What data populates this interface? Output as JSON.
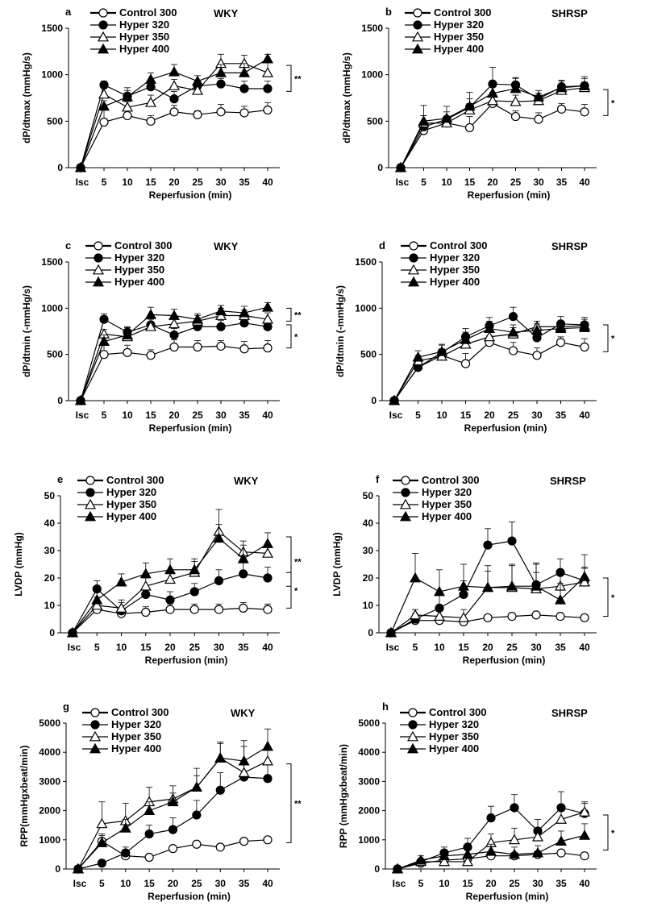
{
  "figure": {
    "x_categories": [
      "Isc",
      "5",
      "10",
      "15",
      "20",
      "25",
      "30",
      "35",
      "40"
    ],
    "xlabel": "Reperfusion   (min)",
    "legend": [
      {
        "name": "Control 300",
        "marker": "circle-open",
        "line": "bold"
      },
      {
        "name": "Hyper 320",
        "marker": "circle-filled",
        "line": "thin"
      },
      {
        "name": "Hyper 350",
        "marker": "triangle-open",
        "line": "thin"
      },
      {
        "name": "Hyper 400",
        "marker": "triangle-filled",
        "line": "thin"
      }
    ],
    "colors": {
      "ink": "#000000",
      "background": "#ffffff"
    }
  },
  "chart_data": [
    {
      "type": "line",
      "panel": "a",
      "strain": "WKY",
      "title": "",
      "ylabel": "dP/dtmax (mmHg/s)",
      "ylim": [
        0,
        1500
      ],
      "yticks": [
        0,
        500,
        1000,
        1500
      ],
      "categories": [
        "Isc",
        "5",
        "10",
        "15",
        "20",
        "25",
        "30",
        "35",
        "40"
      ],
      "series": [
        {
          "name": "Control 300",
          "values": [
            0,
            490,
            560,
            500,
            600,
            570,
            600,
            590,
            620
          ],
          "error": [
            0,
            140,
            80,
            60,
            70,
            40,
            80,
            70,
            80
          ]
        },
        {
          "name": "Hyper 320",
          "values": [
            0,
            890,
            770,
            870,
            740,
            880,
            900,
            850,
            850
          ],
          "error": [
            0,
            40,
            60,
            70,
            80,
            60,
            60,
            80,
            80
          ]
        },
        {
          "name": "Hyper 350",
          "values": [
            0,
            790,
            650,
            700,
            880,
            830,
            1120,
            1120,
            1020
          ],
          "error": [
            0,
            60,
            60,
            80,
            70,
            90,
            100,
            90,
            110
          ]
        },
        {
          "name": "Hyper 400",
          "values": [
            0,
            660,
            760,
            950,
            1030,
            930,
            1020,
            1020,
            1170
          ],
          "error": [
            0,
            60,
            100,
            70,
            80,
            60,
            90,
            100,
            50
          ]
        }
      ],
      "significance": [
        {
          "label": "**",
          "from": 1100,
          "to": 820
        }
      ]
    },
    {
      "type": "line",
      "panel": "b",
      "strain": "SHRSP",
      "title": "",
      "ylabel": "dP/dtmax (mmHg/s)",
      "ylim": [
        0,
        1500
      ],
      "yticks": [
        0,
        500,
        1000,
        1500
      ],
      "categories": [
        "Isc",
        "5",
        "10",
        "15",
        "20",
        "25",
        "30",
        "35",
        "40"
      ],
      "series": [
        {
          "name": "Control 300",
          "values": [
            0,
            400,
            480,
            430,
            690,
            550,
            520,
            630,
            600
          ],
          "error": [
            0,
            100,
            70,
            120,
            80,
            60,
            70,
            60,
            80
          ]
        },
        {
          "name": "Hyper 320",
          "values": [
            0,
            440,
            520,
            650,
            900,
            890,
            740,
            870,
            880
          ],
          "error": [
            0,
            120,
            80,
            90,
            180,
            80,
            60,
            60,
            80
          ]
        },
        {
          "name": "Hyper 350",
          "values": [
            0,
            480,
            480,
            620,
            720,
            710,
            720,
            830,
            860
          ],
          "error": [
            0,
            80,
            60,
            70,
            90,
            70,
            60,
            70,
            60
          ]
        },
        {
          "name": "Hyper 400",
          "values": [
            0,
            500,
            530,
            660,
            800,
            850,
            760,
            860,
            880
          ],
          "error": [
            0,
            170,
            130,
            150,
            100,
            110,
            70,
            80,
            100
          ]
        }
      ],
      "significance": [
        {
          "label": "*",
          "from": 840,
          "to": 560
        }
      ]
    },
    {
      "type": "line",
      "panel": "c",
      "strain": "WKY",
      "title": "",
      "ylabel": "dP/dtmin (-mmHg/s)",
      "ylim": [
        0,
        1500
      ],
      "yticks": [
        0,
        500,
        1000,
        1500
      ],
      "categories": [
        "Isc",
        "5",
        "10",
        "15",
        "20",
        "25",
        "30",
        "35",
        "40"
      ],
      "series": [
        {
          "name": "Control 300",
          "values": [
            0,
            500,
            520,
            490,
            580,
            580,
            590,
            560,
            570
          ],
          "error": [
            0,
            140,
            80,
            60,
            80,
            70,
            60,
            80,
            80
          ]
        },
        {
          "name": "Hyper 320",
          "values": [
            0,
            880,
            740,
            820,
            710,
            800,
            800,
            840,
            800
          ],
          "error": [
            0,
            60,
            60,
            80,
            70,
            70,
            70,
            60,
            70
          ]
        },
        {
          "name": "Hyper 350",
          "values": [
            0,
            720,
            690,
            800,
            830,
            860,
            920,
            920,
            880
          ],
          "error": [
            0,
            50,
            60,
            80,
            70,
            60,
            80,
            60,
            70
          ]
        },
        {
          "name": "Hyper 400",
          "values": [
            0,
            640,
            710,
            930,
            920,
            880,
            970,
            950,
            1010
          ],
          "error": [
            0,
            70,
            80,
            80,
            70,
            60,
            60,
            70,
            50
          ]
        }
      ],
      "significance": [
        {
          "label": "**",
          "from": 1000,
          "to": 860
        },
        {
          "label": "*",
          "from": 820,
          "to": 570
        }
      ]
    },
    {
      "type": "line",
      "panel": "d",
      "strain": "SHRSP",
      "title": "",
      "ylabel": "dP/dtmin (-mmHg/s)",
      "ylim": [
        0,
        1500
      ],
      "yticks": [
        0,
        500,
        1000,
        1500
      ],
      "categories": [
        "Isc",
        "5",
        "10",
        "15",
        "20",
        "25",
        "30",
        "35",
        "40"
      ],
      "series": [
        {
          "name": "Control 300",
          "values": [
            0,
            360,
            490,
            400,
            630,
            540,
            490,
            630,
            580
          ],
          "error": [
            0,
            60,
            70,
            110,
            70,
            90,
            80,
            60,
            90
          ]
        },
        {
          "name": "Hyper 320",
          "values": [
            0,
            360,
            520,
            690,
            810,
            910,
            680,
            830,
            820
          ],
          "error": [
            0,
            70,
            80,
            90,
            90,
            100,
            70,
            80,
            80
          ]
        },
        {
          "name": "Hyper 350",
          "values": [
            0,
            430,
            480,
            610,
            690,
            720,
            800,
            800,
            810
          ],
          "error": [
            0,
            60,
            70,
            60,
            70,
            70,
            60,
            60,
            70
          ]
        },
        {
          "name": "Hyper 400",
          "values": [
            0,
            470,
            530,
            660,
            780,
            740,
            760,
            780,
            790
          ],
          "error": [
            0,
            70,
            80,
            80,
            80,
            80,
            70,
            70,
            60
          ]
        }
      ],
      "significance": [
        {
          "label": "*",
          "from": 820,
          "to": 530
        }
      ]
    },
    {
      "type": "line",
      "panel": "e",
      "strain": "WKY",
      "title": "",
      "ylabel": "LVDP (mmHg)",
      "ylim": [
        0,
        50
      ],
      "yticks": [
        0,
        10,
        20,
        30,
        40,
        50
      ],
      "categories": [
        "Isc",
        "5",
        "10",
        "15",
        "20",
        "25",
        "30",
        "35",
        "40"
      ],
      "series": [
        {
          "name": "Control 300",
          "values": [
            0,
            8.5,
            7,
            7.5,
            8.5,
            8.5,
            8.5,
            9,
            8.5
          ],
          "error": [
            0,
            2,
            2,
            2,
            2,
            2,
            2,
            2,
            2
          ]
        },
        {
          "name": "Hyper 320",
          "values": [
            0,
            16,
            8,
            14,
            12,
            15,
            19,
            21.5,
            20
          ],
          "error": [
            0,
            3,
            3,
            3,
            3,
            3,
            4,
            4,
            4
          ]
        },
        {
          "name": "Hyper 350",
          "values": [
            0,
            10,
            9,
            17,
            19.5,
            22,
            37,
            29.5,
            29
          ],
          "error": [
            0,
            3,
            3,
            3,
            3,
            4,
            8,
            4,
            3
          ]
        },
        {
          "name": "Hyper 400",
          "values": [
            0,
            12,
            18.5,
            21.5,
            23,
            23,
            34.5,
            27,
            32.5
          ],
          "error": [
            0,
            3,
            3,
            4,
            4,
            4,
            5,
            5,
            4
          ]
        }
      ],
      "significance": [
        {
          "label": "**",
          "from": 35,
          "to": 17
        },
        {
          "label": "*",
          "from": 22,
          "to": 9
        }
      ]
    },
    {
      "type": "line",
      "panel": "f",
      "strain": "SHRSP",
      "title": "",
      "ylabel": "LVDP (mmHg)",
      "ylim": [
        0,
        50
      ],
      "yticks": [
        0,
        10,
        20,
        30,
        40,
        50
      ],
      "categories": [
        "Isc",
        "5",
        "10",
        "15",
        "20",
        "25",
        "30",
        "35",
        "40"
      ],
      "series": [
        {
          "name": "Control 300",
          "values": [
            0,
            4.5,
            4.5,
            4,
            5.5,
            6,
            6.5,
            6,
            5.5
          ],
          "error": [
            0,
            1,
            1,
            1,
            1,
            1,
            1,
            1,
            1
          ]
        },
        {
          "name": "Hyper 320",
          "values": [
            0,
            5,
            9,
            14,
            32,
            33.5,
            17.5,
            22,
            19
          ],
          "error": [
            0,
            2,
            5,
            5,
            6,
            7,
            8,
            5,
            5
          ]
        },
        {
          "name": "Hyper 350",
          "values": [
            0,
            6.5,
            6,
            5.5,
            16.5,
            16.5,
            16,
            17,
            18.5
          ],
          "error": [
            0,
            2,
            3,
            3,
            6,
            8,
            6,
            5,
            5
          ]
        },
        {
          "name": "Hyper 400",
          "values": [
            0,
            20,
            15,
            17,
            16.5,
            17,
            17,
            12,
            20.5
          ],
          "error": [
            0,
            9,
            8,
            8,
            8,
            8,
            8,
            6,
            8
          ]
        }
      ],
      "significance": [
        {
          "label": "*",
          "from": 20,
          "to": 6
        }
      ]
    },
    {
      "type": "line",
      "panel": "g",
      "strain": "WKY",
      "title": "",
      "ylabel": "RPP(mmHgxbeat/min)",
      "ylim": [
        0,
        5000
      ],
      "yticks": [
        0,
        1000,
        2000,
        3000,
        4000,
        5000
      ],
      "categories": [
        "Isc",
        "5",
        "10",
        "15",
        "20",
        "25",
        "30",
        "35",
        "40"
      ],
      "series": [
        {
          "name": "Control 300",
          "values": [
            0,
            950,
            450,
            400,
            700,
            850,
            750,
            950,
            1000
          ],
          "error": [
            0,
            200,
            150,
            100,
            100,
            100,
            100,
            100,
            100
          ]
        },
        {
          "name": "Hyper 320",
          "values": [
            0,
            200,
            550,
            1200,
            1350,
            1850,
            2700,
            3150,
            3100
          ],
          "error": [
            0,
            100,
            200,
            300,
            400,
            500,
            600,
            500,
            500
          ]
        },
        {
          "name": "Hyper 350",
          "values": [
            0,
            1550,
            1650,
            2300,
            2400,
            2800,
            3800,
            3300,
            3700
          ],
          "error": [
            0,
            750,
            600,
            500,
            450,
            650,
            550,
            1100,
            500
          ]
        },
        {
          "name": "Hyper 400",
          "values": [
            0,
            900,
            1400,
            2000,
            2300,
            2800,
            3800,
            3700,
            4200
          ],
          "error": [
            0,
            300,
            300,
            300,
            300,
            400,
            500,
            500,
            600
          ]
        }
      ],
      "significance": [
        {
          "label": "**",
          "from": 3600,
          "to": 900
        }
      ]
    },
    {
      "type": "line",
      "panel": "h",
      "strain": "SHRSP",
      "title": "",
      "ylabel": "RPP (mmHgxbeat/min)",
      "ylim": [
        0,
        5000
      ],
      "yticks": [
        0,
        1000,
        2000,
        3000,
        4000,
        5000
      ],
      "categories": [
        "Isc",
        "5",
        "10",
        "15",
        "20",
        "25",
        "30",
        "35",
        "40"
      ],
      "series": [
        {
          "name": "Control 300",
          "values": [
            0,
            200,
            300,
            350,
            450,
            450,
            500,
            550,
            450
          ],
          "error": [
            0,
            50,
            80,
            80,
            100,
            100,
            100,
            100,
            100
          ]
        },
        {
          "name": "Hyper 320",
          "values": [
            0,
            250,
            550,
            750,
            1750,
            2100,
            1300,
            2100,
            1900
          ],
          "error": [
            0,
            100,
            200,
            300,
            400,
            450,
            400,
            550,
            400
          ]
        },
        {
          "name": "Hyper 350",
          "values": [
            0,
            250,
            250,
            250,
            900,
            1000,
            1100,
            1700,
            1950
          ],
          "error": [
            0,
            100,
            150,
            150,
            300,
            400,
            300,
            400,
            300
          ]
        },
        {
          "name": "Hyper 400",
          "values": [
            0,
            300,
            450,
            500,
            600,
            500,
            550,
            950,
            1150
          ],
          "error": [
            0,
            150,
            200,
            200,
            250,
            250,
            250,
            350,
            400
          ]
        }
      ],
      "significance": [
        {
          "label": "*",
          "from": 1850,
          "to": 650
        }
      ]
    }
  ]
}
